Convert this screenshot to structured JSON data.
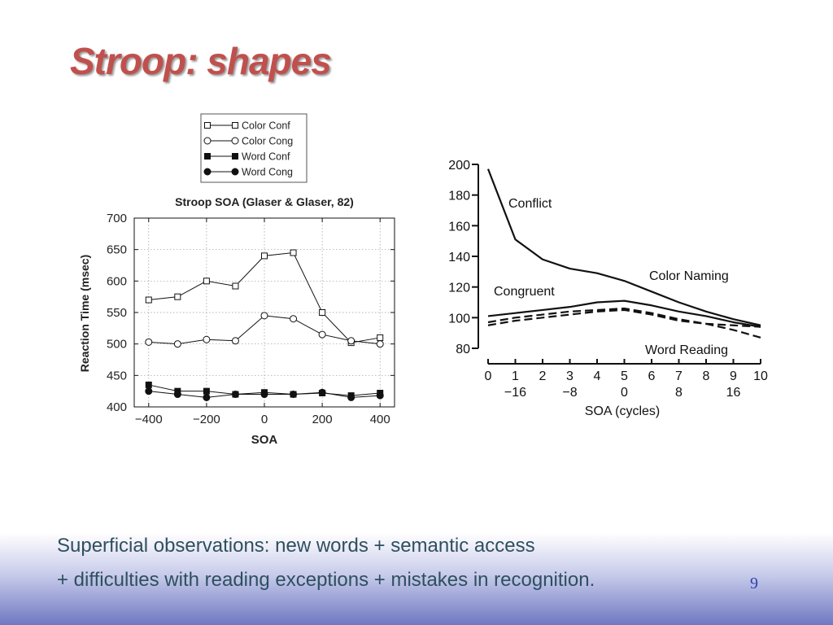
{
  "slide": {
    "title": "Stroop: shapes",
    "caption_line1": "Superficial observations: new words + semantic access",
    "caption_line2": "+ difficulties with reading exceptions + mistakes in recognition.",
    "page_number": "9"
  },
  "chart_data": [
    {
      "type": "line",
      "title": "Stroop SOA (Glaser & Glaser, 82)",
      "xlabel": "SOA",
      "ylabel": "Reaction Time (msec)",
      "xlim": [
        -450,
        450
      ],
      "ylim": [
        400,
        700
      ],
      "xticks": [
        -400,
        -200,
        0,
        200,
        400
      ],
      "xtick_labels": [
        "−400",
        "−200",
        "0",
        "200",
        "400"
      ],
      "yticks": [
        400,
        450,
        500,
        550,
        600,
        650,
        700
      ],
      "grid": true,
      "legend_position": "above-plot",
      "x": [
        -400,
        -300,
        -200,
        -100,
        0,
        100,
        200,
        300,
        400
      ],
      "series": [
        {
          "name": "Color Conf",
          "marker": "square-open",
          "values": [
            570,
            575,
            600,
            592,
            640,
            645,
            550,
            502,
            510
          ]
        },
        {
          "name": "Color Cong",
          "marker": "circle-open",
          "values": [
            503,
            500,
            507,
            505,
            545,
            540,
            515,
            505,
            500
          ]
        },
        {
          "name": "Word Conf",
          "marker": "square-filled",
          "values": [
            435,
            425,
            425,
            420,
            423,
            420,
            422,
            418,
            422
          ]
        },
        {
          "name": "Word Cong",
          "marker": "circle-filled",
          "values": [
            425,
            420,
            415,
            420,
            420,
            420,
            423,
            415,
            418
          ]
        }
      ]
    },
    {
      "type": "line",
      "xlabel": "SOA (cycles)",
      "ylabel": "",
      "xlim": [
        0,
        10
      ],
      "ylim": [
        80,
        200
      ],
      "yticks": [
        80,
        100,
        120,
        140,
        160,
        180,
        200
      ],
      "xticks": [
        0,
        1,
        2,
        3,
        4,
        5,
        6,
        7,
        8,
        9,
        10
      ],
      "xtick_labels": [
        "0",
        "1",
        "2",
        "3",
        "4",
        "5",
        "6",
        "7",
        "8",
        "9",
        "10"
      ],
      "secondary_xticks": [
        1,
        3,
        5,
        7,
        9
      ],
      "secondary_xtick_labels": [
        "−16",
        "−8",
        "0",
        "8",
        "16"
      ],
      "grid": false,
      "annotations": [
        "Conflict",
        "Congruent",
        "Color Naming",
        "Word Reading"
      ],
      "x": [
        0,
        1,
        2,
        3,
        4,
        5,
        6,
        7,
        8,
        9,
        10
      ],
      "series": [
        {
          "style": "solid",
          "values": [
            197,
            151,
            138,
            132,
            129,
            124,
            117,
            110,
            104,
            99,
            95
          ]
        },
        {
          "style": "solid",
          "values": [
            101,
            103,
            105,
            107,
            110,
            111,
            108,
            104,
            101,
            97,
            94
          ]
        },
        {
          "style": "dashed",
          "values": [
            97,
            100,
            102,
            104,
            105,
            106,
            103,
            99,
            96,
            95,
            94
          ]
        },
        {
          "style": "dashed",
          "values": [
            95,
            98,
            100,
            102,
            104,
            105,
            102,
            98,
            96,
            92,
            87
          ]
        }
      ]
    }
  ]
}
